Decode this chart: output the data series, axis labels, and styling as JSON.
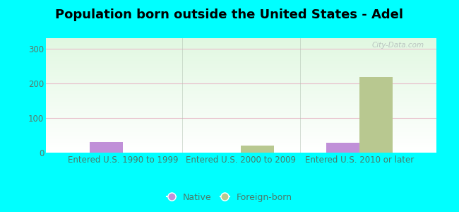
{
  "title": "Population born outside the United States - Adel",
  "background_color": "#00FFFF",
  "categories": [
    "Entered U.S. 1990 to 1999",
    "Entered U.S. 2000 to 2009",
    "Entered U.S. 2010 or later"
  ],
  "native_values": [
    30,
    0,
    28
  ],
  "foreign_values": [
    0,
    20,
    218
  ],
  "native_color": "#c090d8",
  "foreign_color": "#b8c890",
  "ylim": [
    0,
    330
  ],
  "yticks": [
    0,
    100,
    200,
    300
  ],
  "title_fontsize": 13,
  "tick_fontsize": 8.5,
  "legend_native": "Native",
  "legend_foreign": "Foreign-born",
  "bar_width": 0.28,
  "watermark": "City-Data.com",
  "hline_color": "#e8c0cc",
  "xtext_color": "#4a7a6a",
  "ytext_color": "#5a7a6a"
}
